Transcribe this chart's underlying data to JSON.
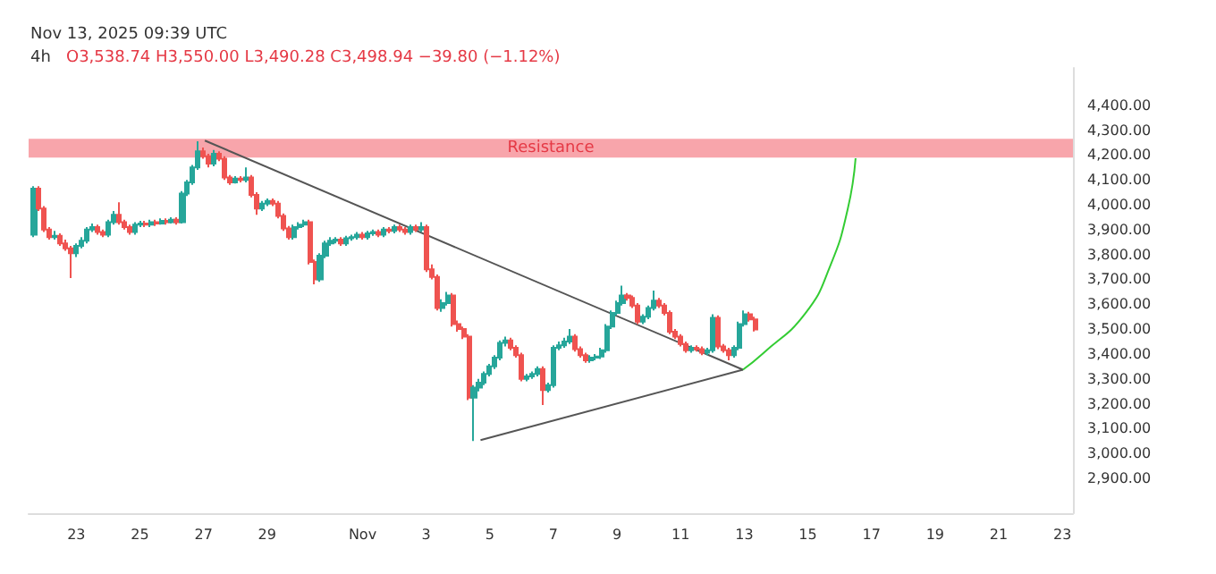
{
  "chart_data": {
    "type": "candlestick",
    "title": "4h",
    "annotations": [
      "Nov 13, 2025 09:39 UTC",
      "O3,538.74 H3,550.00 L3,490.28 C3,498.94 −39.80 (−1.12%)"
    ],
    "x": [
      "2025-10-21T16:00",
      "2025-10-21T20:00",
      "2025-10-22T00:00",
      "2025-10-22T04:00",
      "2025-10-22T08:00",
      "2025-10-22T12:00",
      "2025-10-22T16:00",
      "2025-10-22T20:00",
      "2025-10-23T00:00",
      "2025-10-23T04:00",
      "2025-10-23T08:00",
      "2025-10-23T12:00",
      "2025-10-23T16:00",
      "2025-10-23T20:00",
      "2025-10-24T00:00",
      "2025-10-24T04:00",
      "2025-10-24T08:00",
      "2025-10-24T12:00",
      "2025-10-24T16:00",
      "2025-10-24T20:00",
      "2025-10-25T00:00",
      "2025-10-25T04:00",
      "2025-10-25T08:00",
      "2025-10-25T12:00",
      "2025-10-25T16:00",
      "2025-10-25T20:00",
      "2025-10-26T00:00",
      "2025-10-26T04:00",
      "2025-10-26T08:00",
      "2025-10-26T12:00",
      "2025-10-26T16:00",
      "2025-10-26T20:00",
      "2025-10-27T00:00",
      "2025-10-27T04:00",
      "2025-10-27T08:00",
      "2025-10-27T12:00",
      "2025-10-27T16:00",
      "2025-10-27T20:00",
      "2025-10-28T00:00",
      "2025-10-28T04:00",
      "2025-10-28T08:00",
      "2025-10-28T12:00",
      "2025-10-28T16:00",
      "2025-10-28T20:00",
      "2025-10-29T00:00",
      "2025-10-29T04:00",
      "2025-10-29T08:00",
      "2025-10-29T12:00",
      "2025-10-29T16:00",
      "2025-10-29T20:00",
      "2025-10-30T00:00",
      "2025-10-30T04:00",
      "2025-10-30T08:00",
      "2025-10-30T12:00",
      "2025-10-30T16:00",
      "2025-10-30T20:00",
      "2025-10-31T00:00",
      "2025-10-31T04:00",
      "2025-10-31T08:00",
      "2025-10-31T12:00",
      "2025-10-31T16:00",
      "2025-10-31T20:00",
      "2025-11-01T00:00",
      "2025-11-01T04:00",
      "2025-11-01T08:00",
      "2025-11-01T12:00",
      "2025-11-01T16:00",
      "2025-11-01T20:00",
      "2025-11-02T00:00",
      "2025-11-02T04:00",
      "2025-11-02T08:00",
      "2025-11-02T12:00",
      "2025-11-02T16:00",
      "2025-11-02T20:00",
      "2025-11-03T00:00",
      "2025-11-03T04:00",
      "2025-11-03T08:00",
      "2025-11-03T12:00",
      "2025-11-03T16:00",
      "2025-11-03T20:00",
      "2025-11-04T00:00",
      "2025-11-04T04:00",
      "2025-11-04T08:00",
      "2025-11-04T12:00",
      "2025-11-04T16:00",
      "2025-11-04T20:00",
      "2025-11-05T00:00",
      "2025-11-05T04:00",
      "2025-11-05T08:00",
      "2025-11-05T12:00",
      "2025-11-05T16:00",
      "2025-11-05T20:00",
      "2025-11-06T00:00",
      "2025-11-06T04:00",
      "2025-11-06T08:00",
      "2025-11-06T12:00",
      "2025-11-06T16:00",
      "2025-11-06T20:00",
      "2025-11-07T00:00",
      "2025-11-07T04:00",
      "2025-11-07T08:00",
      "2025-11-07T12:00",
      "2025-11-07T16:00",
      "2025-11-07T20:00",
      "2025-11-08T00:00",
      "2025-11-08T04:00",
      "2025-11-08T08:00",
      "2025-11-08T12:00",
      "2025-11-08T16:00",
      "2025-11-08T20:00",
      "2025-11-09T00:00",
      "2025-11-09T04:00",
      "2025-11-09T08:00",
      "2025-11-09T12:00",
      "2025-11-09T16:00",
      "2025-11-09T20:00",
      "2025-11-10T00:00",
      "2025-11-10T04:00",
      "2025-11-10T08:00",
      "2025-11-10T12:00",
      "2025-11-10T16:00",
      "2025-11-10T20:00",
      "2025-11-11T00:00",
      "2025-11-11T04:00",
      "2025-11-11T08:00",
      "2025-11-11T12:00",
      "2025-11-11T16:00",
      "2025-11-11T20:00",
      "2025-11-12T00:00",
      "2025-11-12T04:00",
      "2025-11-12T08:00",
      "2025-11-12T12:00",
      "2025-11-12T16:00",
      "2025-11-12T20:00",
      "2025-11-13T00:00",
      "2025-11-13T04:00",
      "2025-11-13T08:00"
    ],
    "ohlc": [
      [
        3880,
        4075,
        3870,
        4065
      ],
      [
        4065,
        4075,
        3975,
        3985
      ],
      [
        3985,
        3995,
        3890,
        3900
      ],
      [
        3900,
        3910,
        3860,
        3870
      ],
      [
        3870,
        3895,
        3860,
        3875
      ],
      [
        3875,
        3885,
        3835,
        3845
      ],
      [
        3845,
        3860,
        3815,
        3825
      ],
      [
        3825,
        3835,
        3705,
        3805
      ],
      [
        3805,
        3845,
        3790,
        3835
      ],
      [
        3835,
        3870,
        3825,
        3855
      ],
      [
        3855,
        3910,
        3845,
        3900
      ],
      [
        3900,
        3925,
        3890,
        3910
      ],
      [
        3910,
        3920,
        3880,
        3890
      ],
      [
        3890,
        3900,
        3870,
        3880
      ],
      [
        3880,
        3940,
        3870,
        3930
      ],
      [
        3930,
        3975,
        3920,
        3960
      ],
      [
        3960,
        4010,
        3920,
        3930
      ],
      [
        3930,
        3940,
        3900,
        3910
      ],
      [
        3910,
        3920,
        3880,
        3890
      ],
      [
        3890,
        3930,
        3880,
        3920
      ],
      [
        3920,
        3935,
        3910,
        3925
      ],
      [
        3925,
        3935,
        3910,
        3920
      ],
      [
        3920,
        3940,
        3910,
        3930
      ],
      [
        3930,
        3940,
        3915,
        3925
      ],
      [
        3925,
        3945,
        3920,
        3935
      ],
      [
        3935,
        3945,
        3920,
        3930
      ],
      [
        3930,
        3950,
        3925,
        3940
      ],
      [
        3940,
        3950,
        3920,
        3930
      ],
      [
        3930,
        4055,
        3925,
        4045
      ],
      [
        4045,
        4100,
        4035,
        4090
      ],
      [
        4090,
        4160,
        4080,
        4150
      ],
      [
        4150,
        4255,
        4140,
        4215
      ],
      [
        4215,
        4230,
        4185,
        4195
      ],
      [
        4195,
        4205,
        4150,
        4165
      ],
      [
        4165,
        4220,
        4155,
        4205
      ],
      [
        4205,
        4215,
        4175,
        4185
      ],
      [
        4185,
        4195,
        4100,
        4110
      ],
      [
        4110,
        4120,
        4080,
        4090
      ],
      [
        4090,
        4115,
        4085,
        4105
      ],
      [
        4105,
        4115,
        4090,
        4100
      ],
      [
        4100,
        4150,
        4090,
        4110
      ],
      [
        4110,
        4120,
        4030,
        4040
      ],
      [
        4040,
        4050,
        3960,
        3985
      ],
      [
        3985,
        4015,
        3975,
        4005
      ],
      [
        4005,
        4025,
        3995,
        4015
      ],
      [
        4015,
        4025,
        3995,
        4005
      ],
      [
        4005,
        4015,
        3945,
        3955
      ],
      [
        3955,
        3965,
        3895,
        3905
      ],
      [
        3905,
        3915,
        3860,
        3870
      ],
      [
        3870,
        3920,
        3860,
        3910
      ],
      [
        3910,
        3930,
        3900,
        3920
      ],
      [
        3920,
        3940,
        3910,
        3930
      ],
      [
        3930,
        3940,
        3760,
        3770
      ],
      [
        3770,
        3780,
        3680,
        3700
      ],
      [
        3700,
        3805,
        3690,
        3795
      ],
      [
        3795,
        3855,
        3785,
        3845
      ],
      [
        3845,
        3870,
        3835,
        3855
      ],
      [
        3855,
        3870,
        3845,
        3860
      ],
      [
        3860,
        3870,
        3835,
        3845
      ],
      [
        3845,
        3875,
        3835,
        3865
      ],
      [
        3865,
        3880,
        3855,
        3870
      ],
      [
        3870,
        3890,
        3860,
        3880
      ],
      [
        3880,
        3890,
        3860,
        3870
      ],
      [
        3870,
        3895,
        3860,
        3885
      ],
      [
        3885,
        3900,
        3875,
        3890
      ],
      [
        3890,
        3900,
        3870,
        3880
      ],
      [
        3880,
        3910,
        3870,
        3900
      ],
      [
        3900,
        3910,
        3885,
        3895
      ],
      [
        3895,
        3920,
        3885,
        3910
      ],
      [
        3910,
        3920,
        3890,
        3900
      ],
      [
        3900,
        3910,
        3880,
        3890
      ],
      [
        3890,
        3920,
        3880,
        3910
      ],
      [
        3910,
        3920,
        3890,
        3900
      ],
      [
        3900,
        3930,
        3890,
        3910
      ],
      [
        3910,
        3920,
        3730,
        3740
      ],
      [
        3740,
        3760,
        3700,
        3710
      ],
      [
        3710,
        3720,
        3575,
        3585
      ],
      [
        3585,
        3620,
        3570,
        3605
      ],
      [
        3605,
        3650,
        3595,
        3635
      ],
      [
        3635,
        3645,
        3510,
        3520
      ],
      [
        3520,
        3535,
        3490,
        3500
      ],
      [
        3500,
        3510,
        3460,
        3470
      ],
      [
        3470,
        3480,
        3215,
        3225
      ],
      [
        3225,
        3275,
        3050,
        3265
      ],
      [
        3265,
        3300,
        3250,
        3285
      ],
      [
        3285,
        3330,
        3275,
        3320
      ],
      [
        3320,
        3360,
        3310,
        3350
      ],
      [
        3350,
        3395,
        3340,
        3385
      ],
      [
        3385,
        3455,
        3375,
        3445
      ],
      [
        3445,
        3470,
        3430,
        3455
      ],
      [
        3455,
        3465,
        3415,
        3425
      ],
      [
        3425,
        3435,
        3385,
        3395
      ],
      [
        3395,
        3405,
        3290,
        3300
      ],
      [
        3300,
        3320,
        3290,
        3310
      ],
      [
        3310,
        3330,
        3300,
        3320
      ],
      [
        3320,
        3350,
        3310,
        3340
      ],
      [
        3340,
        3350,
        3195,
        3255
      ],
      [
        3255,
        3285,
        3245,
        3275
      ],
      [
        3275,
        3435,
        3265,
        3425
      ],
      [
        3425,
        3450,
        3415,
        3435
      ],
      [
        3435,
        3465,
        3425,
        3450
      ],
      [
        3450,
        3500,
        3440,
        3470
      ],
      [
        3470,
        3480,
        3410,
        3420
      ],
      [
        3420,
        3430,
        3385,
        3395
      ],
      [
        3395,
        3405,
        3365,
        3375
      ],
      [
        3375,
        3395,
        3365,
        3385
      ],
      [
        3385,
        3400,
        3375,
        3390
      ],
      [
        3390,
        3425,
        3380,
        3415
      ],
      [
        3415,
        3520,
        3405,
        3510
      ],
      [
        3510,
        3575,
        3500,
        3565
      ],
      [
        3565,
        3615,
        3555,
        3605
      ],
      [
        3605,
        3675,
        3595,
        3635
      ],
      [
        3635,
        3645,
        3615,
        3625
      ],
      [
        3625,
        3635,
        3585,
        3595
      ],
      [
        3595,
        3605,
        3520,
        3530
      ],
      [
        3530,
        3560,
        3520,
        3550
      ],
      [
        3550,
        3595,
        3540,
        3585
      ],
      [
        3585,
        3655,
        3575,
        3615
      ],
      [
        3615,
        3625,
        3585,
        3595
      ],
      [
        3595,
        3605,
        3555,
        3565
      ],
      [
        3565,
        3575,
        3480,
        3490
      ],
      [
        3490,
        3500,
        3460,
        3470
      ],
      [
        3470,
        3480,
        3430,
        3440
      ],
      [
        3440,
        3450,
        3405,
        3415
      ],
      [
        3415,
        3435,
        3405,
        3425
      ],
      [
        3425,
        3435,
        3410,
        3420
      ],
      [
        3420,
        3430,
        3395,
        3405
      ],
      [
        3405,
        3425,
        3395,
        3415
      ],
      [
        3415,
        3560,
        3405,
        3545
      ],
      [
        3545,
        3555,
        3420,
        3430
      ],
      [
        3430,
        3440,
        3405,
        3415
      ],
      [
        3415,
        3425,
        3375,
        3395
      ],
      [
        3395,
        3435,
        3385,
        3425
      ],
      [
        3425,
        3530,
        3415,
        3520
      ],
      [
        3520,
        3575,
        3510,
        3560
      ],
      [
        3560,
        3570,
        3530,
        3538.74
      ],
      [
        3538.74,
        3550,
        3490.28,
        3498.94
      ]
    ],
    "series": [
      {
        "type": "line",
        "color": "#555555",
        "x": [
          "2025-10-27T01:00",
          "2025-11-12T23:00"
        ],
        "values": [
          4258,
          3337
        ]
      },
      {
        "type": "line",
        "color": "#555555",
        "x": [
          "2025-11-04T17:00",
          "2025-11-12T23:00"
        ],
        "values": [
          3054,
          3337
        ]
      },
      {
        "type": "line",
        "color": "#33cc33",
        "x": [
          "2025-11-12T23:00",
          "2025-11-13T14:00",
          "2025-11-14T22:00",
          "2025-11-15T17:00",
          "2025-11-16T06:00",
          "2025-11-16T12:00"
        ],
        "values": [
          3337,
          3402,
          3563,
          3756,
          3981,
          4187
        ]
      }
    ],
    "bands": [
      {
        "axis": "y",
        "from": 4190,
        "to": 4265,
        "label": "Resistance",
        "color": "#f8a5ab"
      }
    ],
    "xlim": [
      "2025-10-21T12:00",
      "2025-11-23T08:00"
    ],
    "xticks": [
      {
        "value": "2025-10-23",
        "label": "23"
      },
      {
        "value": "2025-10-25",
        "label": "25"
      },
      {
        "value": "2025-10-27",
        "label": "27"
      },
      {
        "value": "2025-10-29",
        "label": "29"
      },
      {
        "value": "2025-11-01",
        "label": "Nov"
      },
      {
        "value": "2025-11-03",
        "label": "3"
      },
      {
        "value": "2025-11-05",
        "label": "5"
      },
      {
        "value": "2025-11-07",
        "label": "7"
      },
      {
        "value": "2025-11-09",
        "label": "9"
      },
      {
        "value": "2025-11-11",
        "label": "11"
      },
      {
        "value": "2025-11-13",
        "label": "13"
      },
      {
        "value": "2025-11-15",
        "label": "15"
      },
      {
        "value": "2025-11-17",
        "label": "17"
      },
      {
        "value": "2025-11-19",
        "label": "19"
      },
      {
        "value": "2025-11-21",
        "label": "21"
      },
      {
        "value": "2025-11-23",
        "label": "23"
      }
    ],
    "ylim": [
      2760,
      4550
    ],
    "yticks": [
      {
        "value": 2900,
        "label": "2,900.00"
      },
      {
        "value": 3000,
        "label": "3,000.00"
      },
      {
        "value": 3100,
        "label": "3,100.00"
      },
      {
        "value": 3200,
        "label": "3,200.00"
      },
      {
        "value": 3300,
        "label": "3,300.00"
      },
      {
        "value": 3400,
        "label": "3,400.00"
      },
      {
        "value": 3500,
        "label": "3,500.00"
      },
      {
        "value": 3600,
        "label": "3,600.00"
      },
      {
        "value": 3700,
        "label": "3,700.00"
      },
      {
        "value": 3800,
        "label": "3,800.00"
      },
      {
        "value": 3900,
        "label": "3,900.00"
      },
      {
        "value": 4000,
        "label": "4,000.00"
      },
      {
        "value": 4100,
        "label": "4,100.00"
      },
      {
        "value": 4200,
        "label": "4,200.00"
      },
      {
        "value": 4300,
        "label": "4,300.00"
      },
      {
        "value": 4400,
        "label": "4,400.00"
      }
    ],
    "marker": "none",
    "line_style": "solid",
    "grid": false
  }
}
